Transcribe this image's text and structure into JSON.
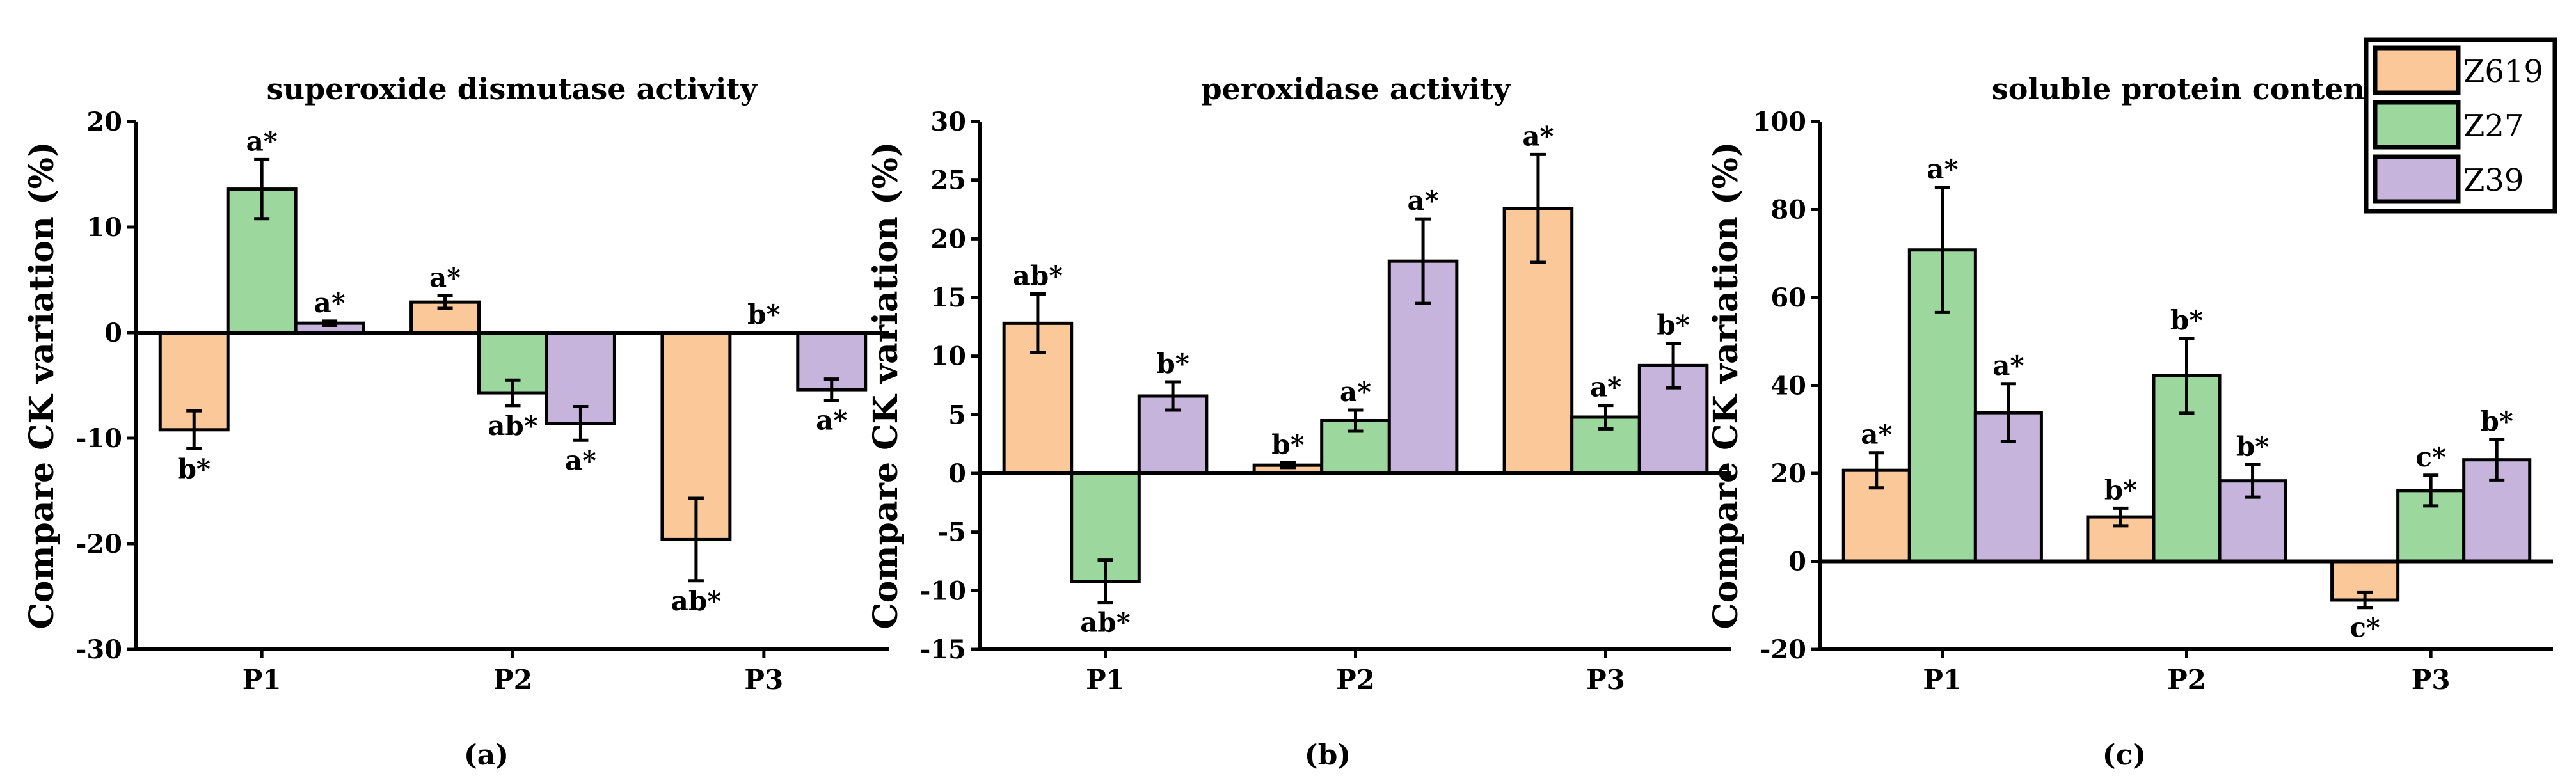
{
  "legend": [
    {
      "name": "Z619",
      "color": "#FBC899"
    },
    {
      "name": "Z27",
      "color": "#9CD89D"
    },
    {
      "name": "Z39",
      "color": "#C6B4DC"
    }
  ],
  "chart_data": [
    {
      "type": "bar",
      "panel_label": "(a)",
      "title": "superoxide dismutase activity",
      "xlabel": "",
      "ylabel": "Compare CK variation (%)",
      "ylim": [
        -30,
        20
      ],
      "yticks": [
        -30,
        -20,
        -10,
        0,
        10,
        20
      ],
      "categories": [
        "P1",
        "P2",
        "P3"
      ],
      "series": [
        {
          "name": "Z619",
          "values": [
            -9.2,
            2.9,
            -19.6
          ],
          "errors": [
            1.8,
            0.6,
            3.9
          ],
          "labels": [
            "b*",
            "a*",
            "ab*"
          ]
        },
        {
          "name": "Z27",
          "values": [
            13.6,
            -5.7,
            0.0
          ],
          "errors": [
            2.8,
            1.2,
            0.0
          ],
          "labels": [
            "a*",
            "ab*",
            "b*"
          ]
        },
        {
          "name": "Z39",
          "values": [
            0.9,
            -8.6,
            -5.4
          ],
          "errors": [
            0.2,
            1.6,
            1.0
          ],
          "labels": [
            "a*",
            "a*",
            "a*"
          ]
        }
      ]
    },
    {
      "type": "bar",
      "panel_label": "(b)",
      "title": "peroxidase activity",
      "xlabel": "",
      "ylabel": "Compare CK variation (%)",
      "ylim": [
        -15,
        30
      ],
      "yticks": [
        -15,
        -10,
        -5,
        0,
        5,
        10,
        15,
        20,
        25,
        30
      ],
      "categories": [
        "P1",
        "P2",
        "P3"
      ],
      "series": [
        {
          "name": "Z619",
          "values": [
            12.8,
            0.7,
            22.6
          ],
          "errors": [
            2.5,
            0.2,
            4.6
          ],
          "labels": [
            "ab*",
            "b*",
            "a*"
          ]
        },
        {
          "name": "Z27",
          "values": [
            -9.2,
            4.5,
            4.8
          ],
          "errors": [
            1.8,
            0.9,
            1.0
          ],
          "labels": [
            "ab*",
            "a*",
            "a*"
          ]
        },
        {
          "name": "Z39",
          "values": [
            6.6,
            18.1,
            9.2
          ],
          "errors": [
            1.2,
            3.6,
            1.9
          ],
          "labels": [
            "b*",
            "a*",
            "b*"
          ]
        }
      ]
    },
    {
      "type": "bar",
      "panel_label": "(c)",
      "title": "soluble protein content",
      "xlabel": "",
      "ylabel": "Compare CK variation (%)",
      "ylim": [
        -20,
        100
      ],
      "yticks": [
        -20,
        0,
        20,
        40,
        60,
        80,
        100
      ],
      "categories": [
        "P1",
        "P2",
        "P3"
      ],
      "series": [
        {
          "name": "Z619",
          "values": [
            20.7,
            10.1,
            -8.8
          ],
          "errors": [
            4.0,
            2.0,
            1.7
          ],
          "labels": [
            "a*",
            "b*",
            "c*"
          ]
        },
        {
          "name": "Z27",
          "values": [
            70.8,
            42.2,
            16.1
          ],
          "errors": [
            14.2,
            8.5,
            3.5
          ],
          "labels": [
            "a*",
            "b*",
            "c*"
          ]
        },
        {
          "name": "Z39",
          "values": [
            33.8,
            18.3,
            23.1
          ],
          "errors": [
            6.6,
            3.7,
            4.6
          ],
          "labels": [
            "a*",
            "b*",
            "b*"
          ]
        }
      ]
    }
  ]
}
